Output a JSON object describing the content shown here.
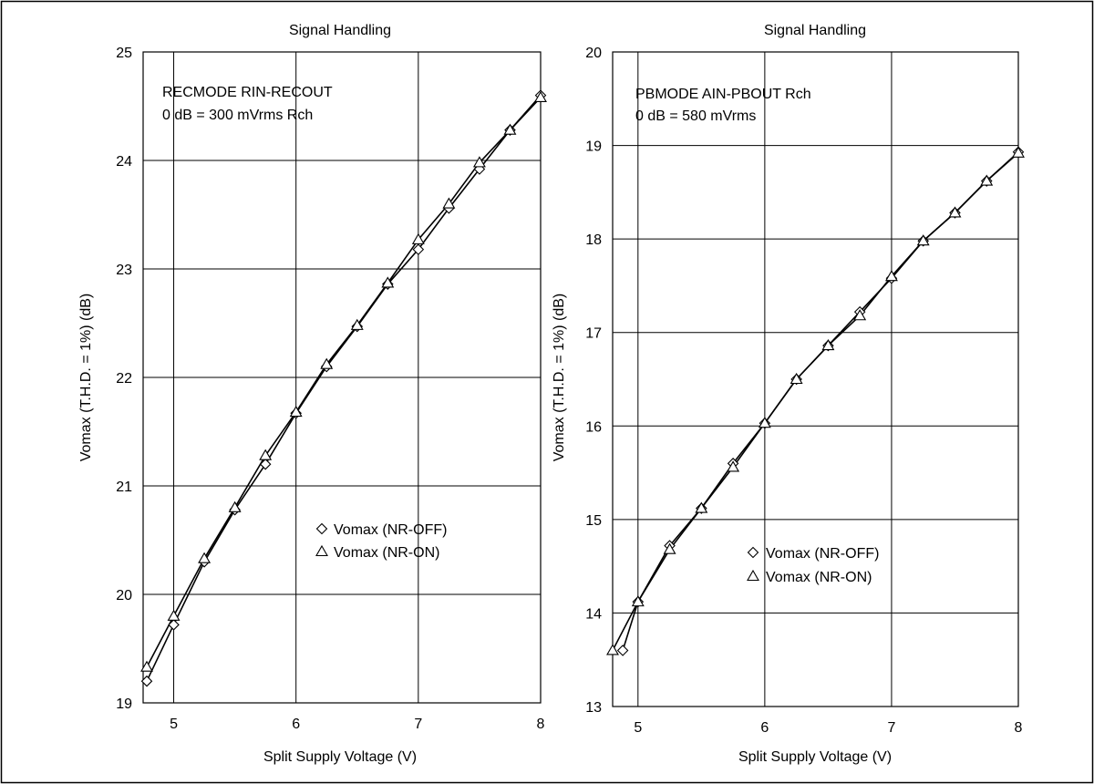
{
  "chart_data": [
    {
      "type": "line",
      "title": "Signal Handling",
      "annotation": [
        "RECMODE RIN-RECOUT",
        "0 dB = 300 mVrms  Rch"
      ],
      "xlabel": "Split Supply Voltage  (V)",
      "ylabel": "Vomax (T.H.D. = 1%)  (dB)",
      "xlim": [
        4.75,
        8
      ],
      "ylim": [
        19,
        25
      ],
      "xticks": [
        5,
        6,
        7,
        8
      ],
      "yticks": [
        19,
        20,
        21,
        22,
        23,
        24,
        25
      ],
      "grid": true,
      "legend_position": "center-right",
      "series": [
        {
          "name": "Vomax (NR-OFF)",
          "marker": "diamond",
          "x": [
            4.78,
            5.0,
            5.25,
            5.5,
            5.75,
            6.0,
            6.25,
            6.5,
            6.75,
            7.0,
            7.25,
            7.5,
            7.75,
            8.0
          ],
          "y": [
            19.2,
            19.72,
            20.3,
            20.78,
            21.2,
            21.67,
            22.1,
            22.47,
            22.86,
            23.18,
            23.56,
            23.92,
            24.28,
            24.6
          ]
        },
        {
          "name": "Vomax (NR-ON)",
          "marker": "triangle",
          "x": [
            4.78,
            5.0,
            5.25,
            5.5,
            5.75,
            6.0,
            6.25,
            6.5,
            6.75,
            7.0,
            7.25,
            7.5,
            7.75,
            8.0
          ],
          "y": [
            19.33,
            19.8,
            20.33,
            20.8,
            21.28,
            21.68,
            22.12,
            22.48,
            22.87,
            23.27,
            23.6,
            23.98,
            24.28,
            24.58
          ]
        }
      ]
    },
    {
      "type": "line",
      "title": "Signal Handling",
      "annotation": [
        "PBMODE AIN-PBOUT Rch",
        "0 dB = 580 mVrms"
      ],
      "xlabel": "Split Supply Voltage  (V)",
      "ylabel": "Vomax (T.H.D. = 1%)  (dB)",
      "xlim": [
        4.8,
        8
      ],
      "ylim": [
        13,
        20
      ],
      "xticks": [
        5,
        6,
        7,
        8
      ],
      "yticks": [
        13,
        14,
        15,
        16,
        17,
        18,
        19,
        20
      ],
      "grid": true,
      "legend_position": "center-right",
      "series": [
        {
          "name": "Vomax (NR-OFF)",
          "marker": "diamond",
          "x": [
            4.88,
            5.0,
            5.25,
            5.5,
            5.75,
            6.0,
            6.25,
            6.5,
            6.75,
            7.0,
            7.25,
            7.5,
            7.75,
            8.0
          ],
          "y": [
            13.6,
            14.12,
            14.72,
            15.12,
            15.6,
            16.03,
            16.5,
            16.86,
            17.22,
            17.58,
            17.98,
            18.28,
            18.62,
            18.93
          ]
        },
        {
          "name": "Vomax (NR-ON)",
          "marker": "triangle",
          "x": [
            4.8,
            5.0,
            5.25,
            5.5,
            5.75,
            6.0,
            6.25,
            6.5,
            6.75,
            7.0,
            7.25,
            7.5,
            7.75,
            8.0
          ],
          "y": [
            13.6,
            14.12,
            14.68,
            15.12,
            15.56,
            16.03,
            16.5,
            16.86,
            17.18,
            17.6,
            17.98,
            18.28,
            18.62,
            18.92
          ]
        }
      ]
    }
  ]
}
